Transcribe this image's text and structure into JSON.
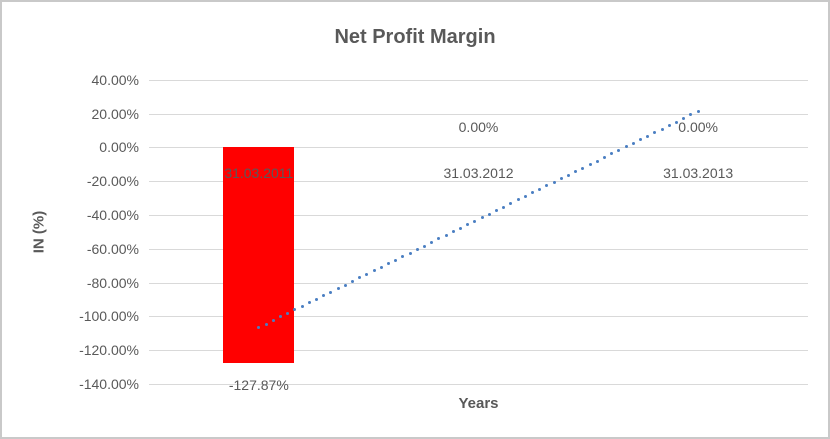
{
  "window": {
    "background": "#ffffff",
    "border_color": "#c9c9c9"
  },
  "chart_data": {
    "type": "bar",
    "title": "Net Profit Margin",
    "xlabel": "Years",
    "ylabel": "IN (%)",
    "categories": [
      "31.03.2011",
      "31.03.2012",
      "31.03.2013"
    ],
    "values": [
      -127.87,
      0.0,
      0.0
    ],
    "data_labels": [
      "-127.87%",
      "0.00%",
      "0.00%"
    ],
    "bar_color": "#ff0000",
    "ylim": [
      -140,
      40
    ],
    "y_tick_step": 20,
    "y_tick_values": [
      40,
      20,
      0,
      -20,
      -40,
      -60,
      -80,
      -100,
      -120,
      -140
    ],
    "y_tick_labels": [
      "40.00%",
      "20.00%",
      "0.00%",
      "-20.00%",
      "-40.00%",
      "-60.00%",
      "-80.00%",
      "-100.00%",
      "-120.00%",
      "-140.00%"
    ],
    "gridlines": "horizontal",
    "gridline_color": "#d9d9d9",
    "text_color": "#595959",
    "legend": "none",
    "trendline": {
      "style": "dotted",
      "color": "#4a7ec2",
      "start_category_index": 0,
      "end_category_index": 2,
      "start_value": -106.6,
      "end_value": 21.3
    }
  }
}
